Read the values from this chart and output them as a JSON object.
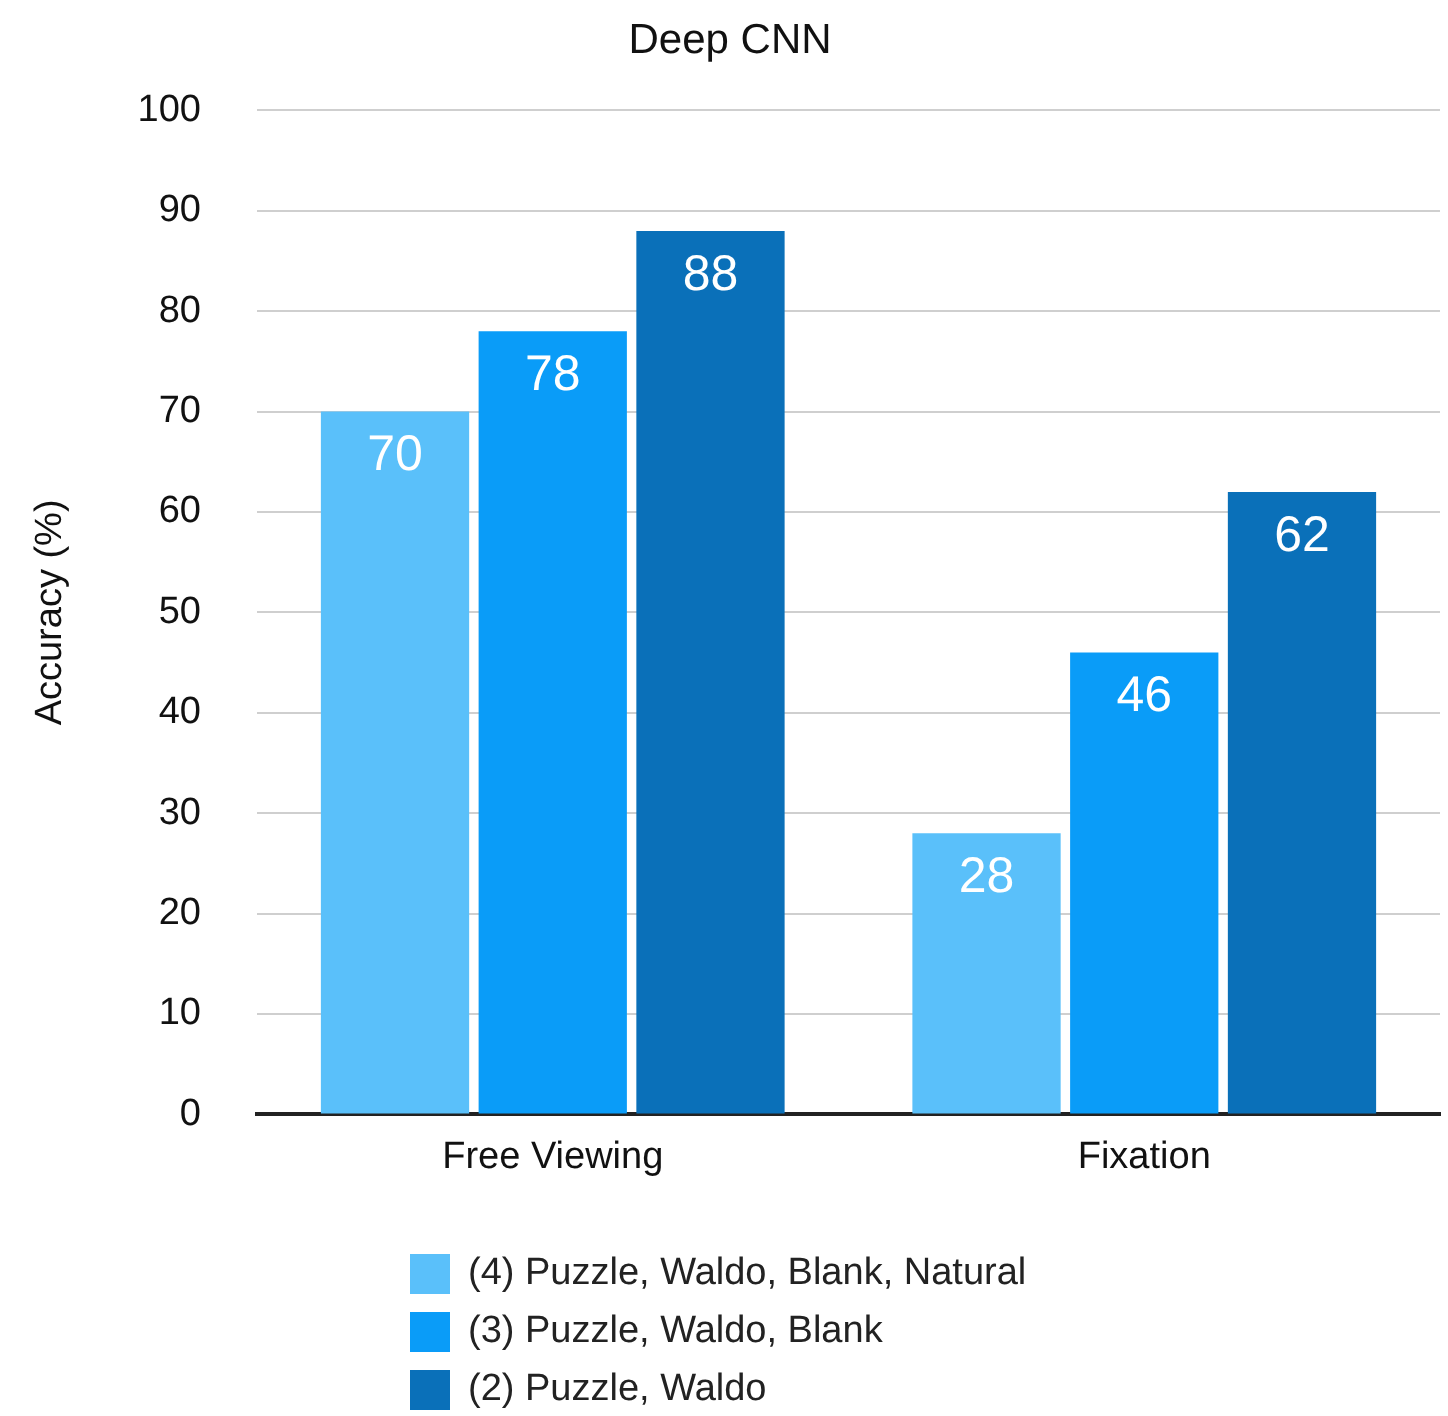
{
  "chart_data": {
    "type": "bar",
    "title": "Deep CNN",
    "ylabel": "Accuracy (%)",
    "categories": [
      "Free Viewing",
      "Fixation"
    ],
    "series": [
      {
        "name": "(4) Puzzle, Waldo, Blank, Natural",
        "color": "#5ac0fa",
        "values": [
          70,
          28
        ]
      },
      {
        "name": "(3) Puzzle, Waldo, Blank",
        "color": "#0a9cf8",
        "values": [
          78,
          46
        ]
      },
      {
        "name": "(2) Puzzle, Waldo",
        "color": "#0a70b9",
        "values": [
          88,
          62
        ]
      }
    ],
    "ylim": [
      0,
      100
    ],
    "yticks": [
      0,
      10,
      20,
      30,
      40,
      50,
      60,
      70,
      80,
      90,
      100
    ],
    "grid": "y",
    "legend": "bottom",
    "data_labels": true
  }
}
